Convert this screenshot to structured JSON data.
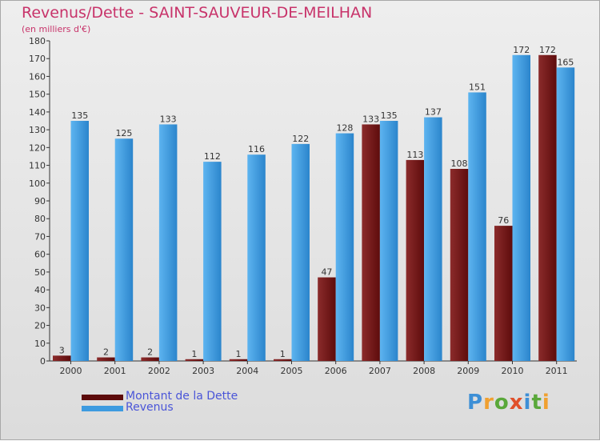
{
  "chart_data": {
    "type": "bar",
    "title": "Revenus/Dette - SAINT-SAUVEUR-DE-MEILHAN",
    "subtitle": "(en milliers d'€)",
    "categories": [
      "2000",
      "2001",
      "2002",
      "2003",
      "2004",
      "2005",
      "2006",
      "2007",
      "2008",
      "2009",
      "2010",
      "2011"
    ],
    "series": [
      {
        "name": "Montant de la Dette",
        "color": "#7a1a1a",
        "values": [
          3,
          2,
          2,
          1,
          1,
          1,
          47,
          133,
          113,
          108,
          76,
          172
        ]
      },
      {
        "name": "Revenus",
        "color": "#3d9be0",
        "values": [
          135,
          125,
          133,
          112,
          116,
          122,
          128,
          135,
          137,
          151,
          172,
          165
        ]
      }
    ],
    "ylim": [
      0,
      180
    ],
    "yticks": [
      0,
      10,
      20,
      30,
      40,
      50,
      60,
      70,
      80,
      90,
      100,
      110,
      120,
      130,
      140,
      150,
      160,
      170,
      180
    ],
    "grid": false,
    "legend_position": "bottom-left"
  },
  "legend": {
    "items": [
      {
        "label": "Montant de la Dette",
        "color": "#5c0a0a"
      },
      {
        "label": "Revenus",
        "color": "#3d9be0"
      }
    ]
  },
  "logo": {
    "text": "Proxiti"
  }
}
